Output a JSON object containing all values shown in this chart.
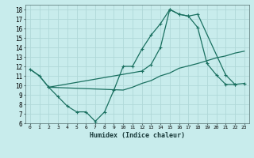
{
  "xlabel": "Humidex (Indice chaleur)",
  "bg_color": "#c8ecec",
  "grid_color": "#b0d8d8",
  "line_color": "#1a7060",
  "xlim": [
    -0.5,
    23.5
  ],
  "ylim": [
    6,
    18.5
  ],
  "xticks": [
    0,
    1,
    2,
    3,
    4,
    5,
    6,
    7,
    8,
    9,
    10,
    11,
    12,
    13,
    14,
    15,
    16,
    17,
    18,
    19,
    20,
    21,
    22,
    23
  ],
  "yticks": [
    6,
    7,
    8,
    9,
    10,
    11,
    12,
    13,
    14,
    15,
    16,
    17,
    18
  ],
  "line1_x": [
    0,
    1,
    2,
    3,
    4,
    5,
    6,
    7,
    8,
    9,
    10,
    11,
    12,
    13,
    14,
    15,
    16,
    17,
    18,
    19,
    20,
    21,
    22
  ],
  "line1_y": [
    11.7,
    11.0,
    9.8,
    8.8,
    7.8,
    7.2,
    7.2,
    6.2,
    7.2,
    9.5,
    12.0,
    12.0,
    13.8,
    15.3,
    16.5,
    18.0,
    17.5,
    17.3,
    16.1,
    12.3,
    11.1,
    10.1,
    10.1
  ],
  "line2_x": [
    2,
    12,
    13,
    14,
    15,
    16,
    17,
    18,
    21,
    22,
    23
  ],
  "line2_y": [
    9.8,
    11.5,
    12.2,
    14.0,
    18.0,
    17.5,
    17.3,
    17.5,
    11.1,
    10.1,
    10.2
  ],
  "line3_x": [
    0,
    1,
    2,
    10,
    11,
    12,
    13,
    14,
    15,
    16,
    18,
    19,
    20,
    21,
    22,
    23
  ],
  "line3_y": [
    11.7,
    11.0,
    9.8,
    9.5,
    9.8,
    10.2,
    10.5,
    11.0,
    11.3,
    11.8,
    12.3,
    12.6,
    12.9,
    13.1,
    13.4,
    13.6
  ]
}
